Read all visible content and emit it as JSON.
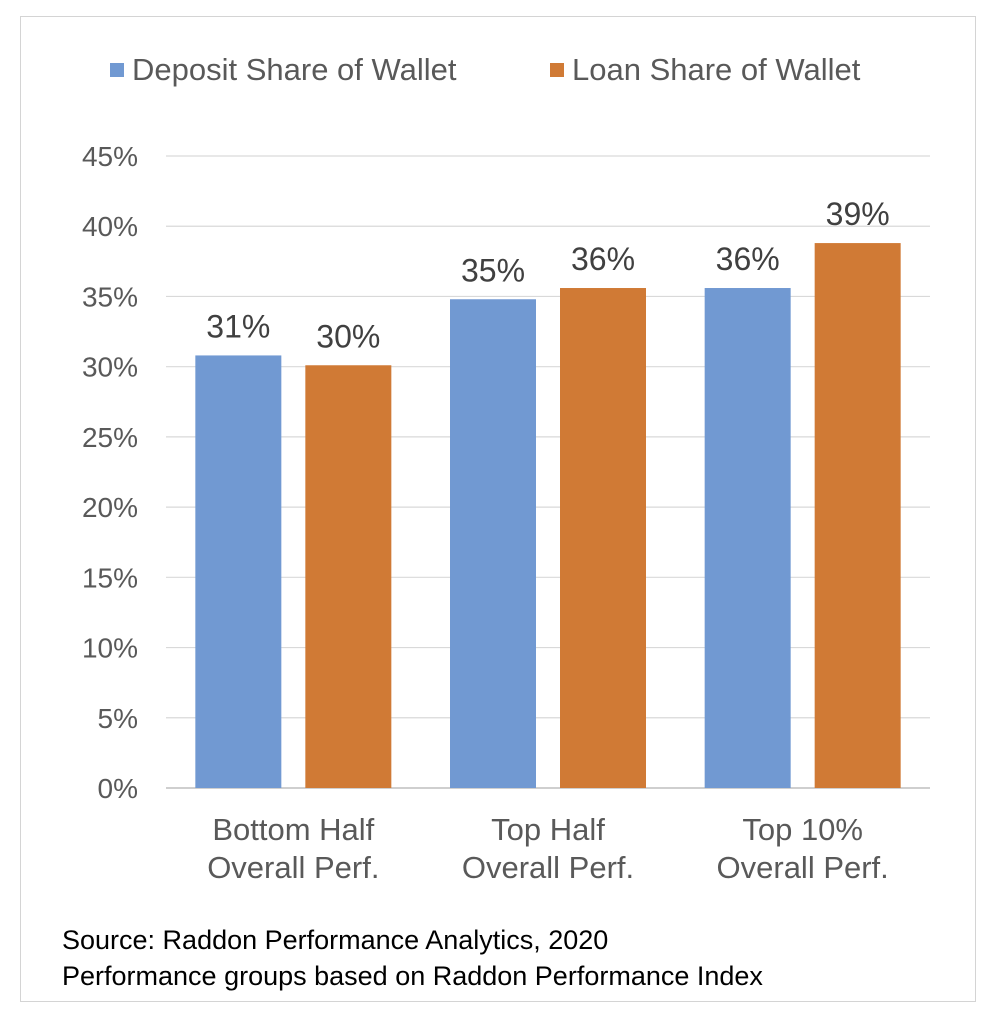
{
  "chart_data": {
    "type": "bar",
    "title": "",
    "xlabel": "",
    "ylabel": "",
    "categories": [
      [
        "Bottom Half",
        "Overall Perf."
      ],
      [
        "Top Half",
        "Overall Perf."
      ],
      [
        "Top 10%",
        "Overall Perf."
      ]
    ],
    "series": [
      {
        "name": "Deposit Share of Wallet",
        "color": "#7199d2",
        "values": [
          30.8,
          34.8,
          35.6
        ],
        "labels": [
          "31%",
          "35%",
          "36%"
        ]
      },
      {
        "name": "Loan Share of Wallet",
        "color": "#d07a35",
        "values": [
          30.1,
          35.6,
          38.8
        ],
        "labels": [
          "30%",
          "36%",
          "39%"
        ]
      }
    ],
    "ylim": [
      0,
      45
    ],
    "yticks": [
      0,
      5,
      10,
      15,
      20,
      25,
      30,
      35,
      40,
      45
    ],
    "ytick_labels": [
      "0%",
      "5%",
      "10%",
      "15%",
      "20%",
      "25%",
      "30%",
      "35%",
      "40%",
      "45%"
    ],
    "grid": true,
    "legend_position": "top"
  },
  "footnotes": {
    "line1": "Source: Raddon Performance Analytics, 2020",
    "line2": "Performance groups based on Raddon Performance Index"
  }
}
